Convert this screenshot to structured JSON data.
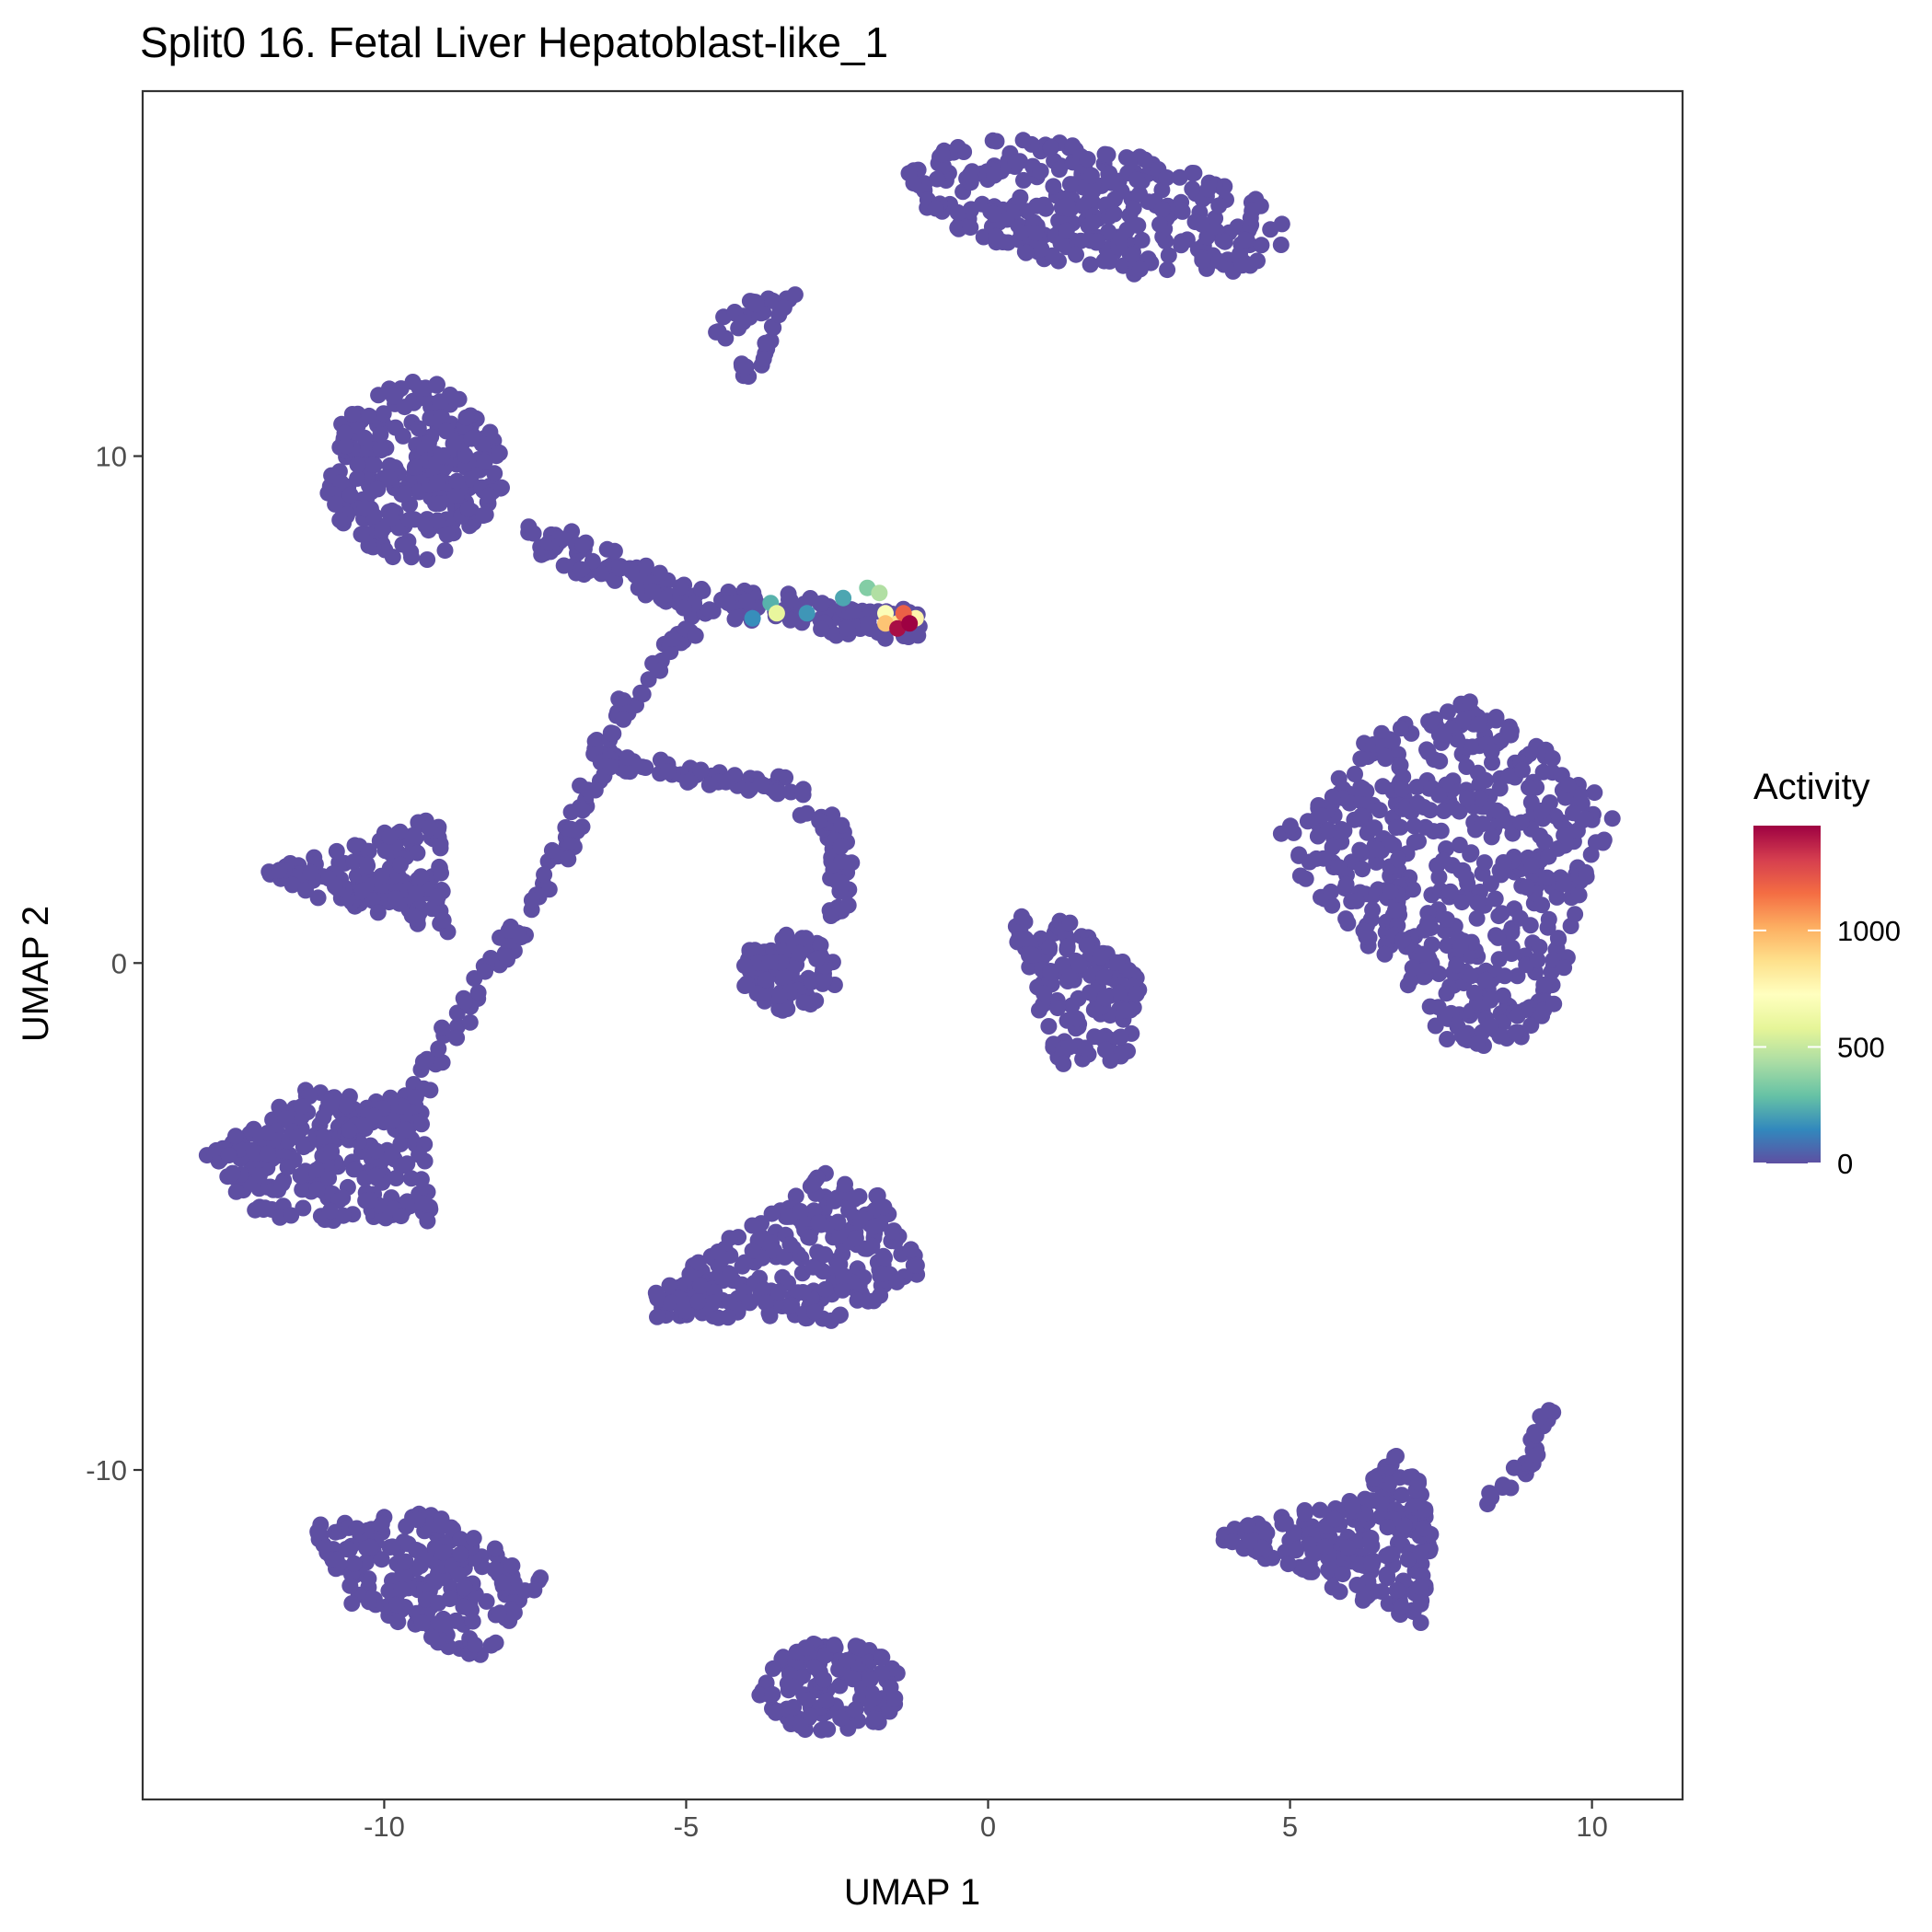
{
  "chart_data": {
    "type": "scatter",
    "title": "Split0 16. Fetal Liver Hepatoblast-like_1",
    "xlabel": "UMAP 1",
    "ylabel": "UMAP 2",
    "xlim": [
      -14.0,
      11.5
    ],
    "ylim": [
      -16.5,
      17.2
    ],
    "x_ticks": [
      -10,
      -5,
      0,
      5,
      10
    ],
    "x_tick_labels": [
      "-10",
      "-5",
      "0",
      "5",
      "10"
    ],
    "y_ticks": [
      10,
      0,
      -10
    ],
    "y_tick_labels": [
      "10",
      "0",
      "-10"
    ],
    "grid": false,
    "legend": {
      "title": "Activity",
      "placement": "right",
      "range": [
        0,
        1450
      ],
      "ticks": [
        0,
        500,
        1000
      ],
      "tick_labels": [
        "0",
        "500",
        "1000"
      ],
      "colormap": [
        "#5E4FA2",
        "#3288BD",
        "#66C2A5",
        "#ABDDA4",
        "#E6F598",
        "#FFFFBF",
        "#FEE08B",
        "#FDAE61",
        "#F46D43",
        "#D53E4F",
        "#9E0142"
      ]
    },
    "base_color": "#5E4FA2",
    "clusters": [
      {
        "name": "top-crescent",
        "shape": "ellipse",
        "center": [
          1.8,
          14.9
        ],
        "radii": [
          3.2,
          1.2
        ],
        "rotation_deg": -12,
        "density": 320
      },
      {
        "name": "top-left-blob",
        "shape": "ellipse",
        "center": [
          -9.5,
          9.7
        ],
        "radii": [
          1.5,
          1.8
        ],
        "rotation_deg": 0,
        "density": 260
      },
      {
        "name": "left-mid-triangle",
        "shape": "polygon",
        "points": [
          [
            -12,
            1.8
          ],
          [
            -9.1,
            3.0
          ],
          [
            -8.9,
            0.6
          ],
          [
            -11.5,
            1.4
          ]
        ],
        "density": 150
      },
      {
        "name": "left-lower-blob",
        "shape": "polygon",
        "points": [
          [
            -13.0,
            -3.8
          ],
          [
            -11.3,
            -2.5
          ],
          [
            -9.4,
            -2.8
          ],
          [
            -9.2,
            -5.1
          ],
          [
            -12,
            -5.1
          ]
        ],
        "density": 230
      },
      {
        "name": "bottom-left-blob",
        "shape": "polygon",
        "points": [
          [
            -11.2,
            -11.1
          ],
          [
            -9.3,
            -10.8
          ],
          [
            -7.3,
            -12.1
          ],
          [
            -8.4,
            -13.8
          ],
          [
            -10.6,
            -12.6
          ]
        ],
        "density": 200
      },
      {
        "name": "bottom-mid-blob",
        "shape": "ellipse",
        "center": [
          -2.6,
          -14.3
        ],
        "radii": [
          1.2,
          0.9
        ],
        "rotation_deg": 0,
        "density": 120
      },
      {
        "name": "center-lower-blob",
        "shape": "polygon",
        "points": [
          [
            -5.5,
            -6.5
          ],
          [
            -3.8,
            -5.0
          ],
          [
            -2.6,
            -4.0
          ],
          [
            -1.8,
            -4.5
          ],
          [
            -1.0,
            -6.0
          ],
          [
            -2.3,
            -7.1
          ],
          [
            -5.6,
            -7.0
          ]
        ],
        "density": 260
      },
      {
        "name": "center-small-blob",
        "shape": "ellipse",
        "center": [
          -3.3,
          -0.2
        ],
        "radii": [
          0.8,
          0.8
        ],
        "rotation_deg": 0,
        "density": 90
      },
      {
        "name": "center-right-blob",
        "shape": "polygon",
        "points": [
          [
            0.4,
            1.0
          ],
          [
            1.4,
            0.8
          ],
          [
            2.5,
            0.0
          ],
          [
            2.5,
            -1.9
          ],
          [
            1.2,
            -2.0
          ],
          [
            0.6,
            -0.4
          ]
        ],
        "density": 150
      },
      {
        "name": "right-large-blob",
        "shape": "polygon",
        "points": [
          [
            4.8,
            2.5
          ],
          [
            6.2,
            4.4
          ],
          [
            8.0,
            5.2
          ],
          [
            9.5,
            4.0
          ],
          [
            10.4,
            3.0
          ],
          [
            9.8,
            1.2
          ],
          [
            9.5,
            -0.8
          ],
          [
            8.8,
            -1.9
          ],
          [
            7.3,
            -1.5
          ],
          [
            6.7,
            0.0
          ],
          [
            5.5,
            1.0
          ]
        ],
        "density": 520
      },
      {
        "name": "bottom-right-triangle",
        "shape": "polygon",
        "points": [
          [
            3.7,
            -11.3
          ],
          [
            6.2,
            -10.4
          ],
          [
            6.8,
            -9.6
          ],
          [
            7.4,
            -10.7
          ],
          [
            7.2,
            -13.1
          ],
          [
            5.8,
            -12.4
          ]
        ],
        "density": 220
      },
      {
        "name": "middle-trajectory",
        "shape": "polyline",
        "points": [
          [
            -7.5,
            8.4
          ],
          [
            -6.2,
            7.8
          ],
          [
            -4.8,
            7.1
          ],
          [
            -3.4,
            7.0
          ],
          [
            -2.2,
            6.7
          ],
          [
            -1.2,
            6.7
          ]
        ],
        "width": 0.6,
        "density": 180
      },
      {
        "name": "middle-branch",
        "shape": "polyline",
        "points": [
          [
            -5.0,
            6.5
          ],
          [
            -6.3,
            4.6
          ],
          [
            -6.7,
            3.0
          ],
          [
            -7.6,
            1.0
          ],
          [
            -8.5,
            -0.5
          ],
          [
            -9.5,
            -2.6
          ],
          [
            -10.7,
            -3.4
          ]
        ],
        "width": 0.35,
        "density": 130
      },
      {
        "name": "middle-branch-2",
        "shape": "polyline",
        "points": [
          [
            -6.4,
            4.0
          ],
          [
            -4.3,
            3.6
          ],
          [
            -3.3,
            3.5
          ],
          [
            -2.4,
            2.4
          ],
          [
            -2.5,
            0.8
          ]
        ],
        "width": 0.35,
        "density": 100
      },
      {
        "name": "top-stem",
        "shape": "polyline",
        "points": [
          [
            -4.5,
            12.3
          ],
          [
            -4.0,
            12.9
          ],
          [
            -3.3,
            13.1
          ],
          [
            -4.1,
            11.5
          ]
        ],
        "width": 0.28,
        "density": 40
      },
      {
        "name": "right-tail",
        "shape": "polyline",
        "points": [
          [
            7.8,
            -10.9
          ],
          [
            8.6,
            -10.3
          ],
          [
            9.0,
            -9.7
          ],
          [
            9.3,
            -8.8
          ]
        ],
        "width": 0.2,
        "density": 25
      }
    ],
    "high_activity_points": [
      {
        "x": -2.4,
        "y": 7.2,
        "value": 220
      },
      {
        "x": -3.0,
        "y": 6.9,
        "value": 180
      },
      {
        "x": -3.9,
        "y": 6.8,
        "value": 160
      },
      {
        "x": -3.6,
        "y": 7.1,
        "value": 250
      },
      {
        "x": -2.0,
        "y": 7.4,
        "value": 350
      },
      {
        "x": -1.8,
        "y": 7.3,
        "value": 450
      },
      {
        "x": -3.5,
        "y": 6.9,
        "value": 600
      },
      {
        "x": -1.7,
        "y": 6.9,
        "value": 700
      },
      {
        "x": -1.5,
        "y": 6.7,
        "value": 850
      },
      {
        "x": -1.2,
        "y": 6.8,
        "value": 780
      },
      {
        "x": -1.7,
        "y": 6.7,
        "value": 950
      },
      {
        "x": -1.4,
        "y": 6.9,
        "value": 1200
      },
      {
        "x": -1.3,
        "y": 6.7,
        "value": 1450
      },
      {
        "x": -1.5,
        "y": 6.6,
        "value": 1420
      }
    ]
  }
}
